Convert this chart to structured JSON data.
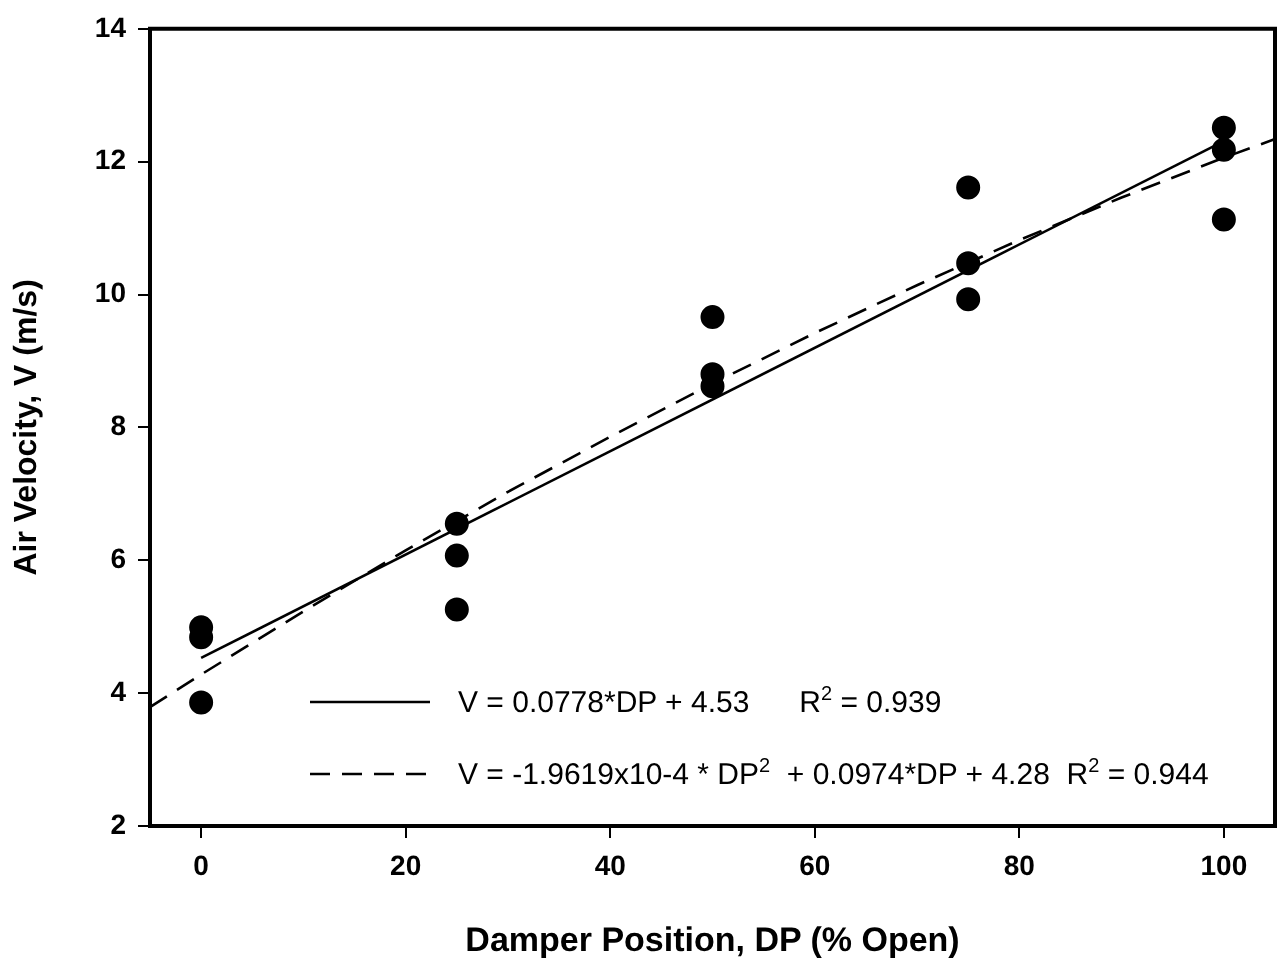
{
  "chart_data": {
    "type": "scatter",
    "xlabel": "Damper Position, DP (% Open)",
    "ylabel": "Air Velocity, V (m/s)",
    "xlim": [
      -5,
      105
    ],
    "xticks": [
      0,
      20,
      40,
      60,
      80,
      100
    ],
    "ylim": [
      2,
      14
    ],
    "yticks": [
      2,
      4,
      6,
      8,
      10,
      12,
      14
    ],
    "legend": "bottom",
    "series": [
      {
        "color": "#000000",
        "marker": "circle",
        "x": [
          0,
          0,
          0,
          25,
          25,
          25,
          50,
          50,
          50,
          75,
          75,
          75,
          100,
          100,
          100
        ],
        "values": [
          4.99,
          4.84,
          3.86,
          6.55,
          6.07,
          5.26,
          9.66,
          8.8,
          8.62,
          11.61,
          10.47,
          9.93,
          12.51,
          12.18,
          11.13
        ]
      },
      {
        "type": "line",
        "name": "V = 0.0778*DP + 4.53      R$^{2}$ = 0.939",
        "color": "#000000",
        "marker": "none",
        "line_style": "solid",
        "x": [
          0,
          100
        ],
        "values": [
          4.53,
          12.31
        ]
      },
      {
        "type": "line",
        "name": "V = -1.9619x10-4 * DP$^{2}$  + 0.0974*DP + 4.28  R$^{2}$ = 0.944",
        "color": "#000000",
        "marker": "none",
        "line_style": "dashed",
        "x": [
          -5,
          0,
          10,
          20,
          30,
          40,
          50,
          60,
          70,
          80,
          90,
          100,
          105
        ],
        "values": [
          3.79,
          4.28,
          5.23,
          6.15,
          7.03,
          7.86,
          8.66,
          9.42,
          10.14,
          10.82,
          11.46,
          12.06,
          12.34
        ]
      }
    ]
  }
}
